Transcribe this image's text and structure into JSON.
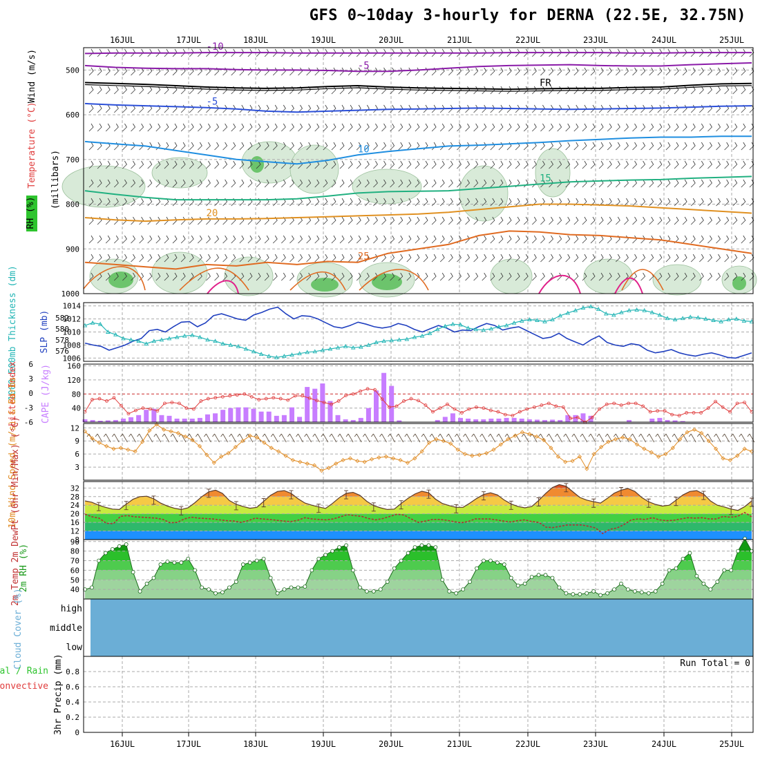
{
  "title": "GFS 0~10day 3-hourly for DERNA (22.5E, 32.75N)",
  "days": [
    "16JUL",
    "17JUL",
    "18JUL",
    "19JUL",
    "20JUL",
    "21JUL",
    "22JUL",
    "23JUL",
    "24JUL",
    "25JUL"
  ],
  "colors": {
    "grid": "#aaaaaa",
    "cloud": "#6baed6",
    "cape": "#c77dff",
    "lifted": "#e03c3c",
    "slp": "#1f3fbf",
    "thick": "#22b5b5",
    "wind10": "#e08a20",
    "dew": "#b03030"
  },
  "chart_data": [
    {
      "type": "heatmap",
      "panel": "upper-air",
      "ylabel_wind": "Wind (m/s)",
      "ylabel_temp": "Temperature (°C)",
      "ylabel_rh": "RH (%)",
      "ylabel_units": "(millibars)",
      "y_ticks": [
        "500",
        "600",
        "700",
        "800",
        "900",
        "1000"
      ],
      "ylim": [
        1000,
        450
      ],
      "temperature_contours": [
        {
          "label": "-10",
          "color": "#8a1aa8",
          "p": [
            463,
            462,
            462,
            462,
            461,
            461,
            461,
            462,
            462,
            462,
            462,
            462,
            462,
            462,
            461,
            461,
            461,
            461,
            462,
            462,
            461,
            461,
            461
          ]
        },
        {
          "label": "-5",
          "color": "#8a1aa8",
          "p": [
            490,
            494,
            496,
            497,
            497,
            499,
            500,
            500,
            501,
            503,
            503,
            500,
            496,
            492,
            490,
            489,
            488,
            490,
            491,
            491,
            488,
            486,
            484
          ]
        },
        {
          "label": "FR",
          "color": "#000000",
          "p": [
            528,
            530,
            532,
            535,
            538,
            540,
            541,
            540,
            537,
            535,
            538,
            540,
            541,
            542,
            543,
            542,
            541,
            541,
            539,
            538,
            534,
            531,
            530
          ]
        },
        {
          "label": "-5",
          "color": "#2b4fd8",
          "p": [
            575,
            578,
            580,
            582,
            584,
            587,
            592,
            594,
            592,
            590,
            588,
            587,
            586,
            585,
            586,
            587,
            588,
            587,
            586,
            585,
            583,
            581,
            580
          ]
        },
        {
          "label": "10",
          "color": "#1f8ee0",
          "p": [
            660,
            665,
            670,
            680,
            690,
            700,
            705,
            710,
            702,
            690,
            682,
            676,
            670,
            668,
            665,
            662,
            658,
            655,
            652,
            650,
            650,
            648,
            648
          ]
        },
        {
          "label": "15",
          "color": "#20b080",
          "p": [
            770,
            778,
            785,
            790,
            790,
            790,
            790,
            788,
            782,
            775,
            772,
            771,
            770,
            765,
            760,
            755,
            750,
            748,
            746,
            745,
            742,
            740,
            738
          ]
        },
        {
          "label": "20",
          "color": "#e09020",
          "p": [
            830,
            835,
            838,
            835,
            833,
            833,
            832,
            830,
            828,
            826,
            824,
            822,
            818,
            812,
            806,
            800,
            800,
            802,
            804,
            808,
            812,
            816,
            820
          ]
        },
        {
          "label": "25",
          "color": "#e06a20",
          "p": [
            930,
            935,
            940,
            945,
            935,
            938,
            930,
            935,
            928,
            930,
            910,
            900,
            890,
            870,
            860,
            862,
            868,
            870,
            875,
            880,
            890,
            900,
            910
          ]
        }
      ],
      "rh_shading_levels": [
        "10",
        "30",
        "70",
        "90"
      ]
    },
    {
      "type": "line",
      "panel": "pressure",
      "ylabel_left": "1000-500mb Thickness (dm)",
      "ylabel_right": "SLP (mb)",
      "left_ticks": [
        576,
        578,
        580,
        582
      ],
      "right_ticks": [
        1006,
        1008,
        1010,
        1012,
        1014
      ],
      "ylim_slp": [
        1005.5,
        1014.5
      ],
      "series": [
        {
          "name": "SLP (mb)",
          "values": [
            1008.3,
            1008.0,
            1007.8,
            1007.2,
            1007.6,
            1008.0,
            1008.6,
            1009.0,
            1010.2,
            1010.4,
            1010.0,
            1010.8,
            1011.5,
            1011.6,
            1010.8,
            1011.4,
            1012.5,
            1012.8,
            1012.4,
            1012.0,
            1011.8,
            1012.6,
            1013.0,
            1013.5,
            1013.8,
            1012.8,
            1012.0,
            1012.5,
            1012.4,
            1012.0,
            1011.4,
            1010.8,
            1010.6,
            1011.0,
            1011.5,
            1011.2,
            1010.8,
            1010.6,
            1010.8,
            1011.3,
            1011.0,
            1010.4,
            1010.0,
            1010.5,
            1011.0,
            1010.6,
            1010.0,
            1010.3,
            1010.2,
            1010.8,
            1011.3,
            1011.0,
            1010.3,
            1010.6,
            1010.8,
            1010.2,
            1009.6,
            1009.0,
            1009.2,
            1009.8,
            1009.0,
            1008.5,
            1008.0,
            1008.8,
            1009.4,
            1008.4,
            1008.0,
            1007.8,
            1008.2,
            1008.0,
            1007.2,
            1006.8,
            1007.0,
            1007.3,
            1006.8,
            1006.5,
            1006.3,
            1006.6,
            1006.8,
            1006.5,
            1006.1,
            1006.0,
            1006.4,
            1006.8
          ]
        },
        {
          "name": "1000-500mb Thickness (dm)",
          "values": [
            1011.0,
            1011.4,
            1011.2,
            1010.0,
            1009.6,
            1009.0,
            1008.8,
            1008.6,
            1008.2,
            1008.6,
            1008.8,
            1009.0,
            1009.2,
            1009.4,
            1009.5,
            1009.2,
            1008.8,
            1008.6,
            1008.2,
            1008.0,
            1007.8,
            1007.4,
            1007.0,
            1006.6,
            1006.3,
            1006.1,
            1006.3,
            1006.5,
            1006.7,
            1006.9,
            1007.0,
            1007.2,
            1007.4,
            1007.6,
            1007.8,
            1007.6,
            1007.7,
            1008.0,
            1008.4,
            1008.6,
            1008.7,
            1008.8,
            1008.9,
            1009.2,
            1009.4,
            1009.8,
            1010.4,
            1010.9,
            1011.2,
            1011.1,
            1010.6,
            1010.4,
            1010.3,
            1010.5,
            1010.8,
            1011.0,
            1011.4,
            1011.7,
            1011.9,
            1011.8,
            1011.6,
            1011.9,
            1012.5,
            1012.9,
            1013.3,
            1013.7,
            1013.9,
            1013.5,
            1012.8,
            1012.6,
            1013.0,
            1013.3,
            1013.4,
            1013.3,
            1013.0,
            1012.6,
            1012.1,
            1011.9,
            1012.1,
            1012.3,
            1012.2,
            1012.0,
            1011.8,
            1011.6,
            1011.9,
            1012.0,
            1011.7,
            1011.6
          ]
        }
      ]
    },
    {
      "type": "bar",
      "panel": "stability",
      "ylabel_left": "Lifted Index",
      "ylabel_right": "CAPE (J/kg)",
      "left_ticks": [
        "-6",
        "-3",
        "0",
        "3",
        "6"
      ],
      "right_ticks": [
        "40",
        "80",
        "120",
        "160"
      ],
      "ylim_cape": [
        0,
        165
      ],
      "cape_values": [
        8,
        6,
        4,
        5,
        6,
        10,
        14,
        20,
        35,
        38,
        20,
        18,
        10,
        10,
        10,
        12,
        22,
        25,
        35,
        40,
        42,
        42,
        38,
        30,
        30,
        18,
        20,
        42,
        15,
        100,
        95,
        110,
        60,
        20,
        8,
        6,
        12,
        40,
        90,
        140,
        103,
        5,
        0,
        0,
        0,
        0,
        6,
        15,
        25,
        12,
        10,
        8,
        8,
        10,
        10,
        12,
        12,
        10,
        8,
        7,
        6,
        7,
        6,
        20,
        20,
        25,
        18,
        0,
        0,
        0,
        0,
        6,
        0,
        0,
        10,
        12,
        6,
        5,
        3,
        0,
        0,
        0,
        0,
        0,
        0,
        0,
        0,
        0
      ],
      "lifted_index": [
        3.8,
        1.2,
        1.0,
        1.5,
        0.8,
        2.5,
        4.2,
        3.5,
        3.0,
        3.2,
        3.6,
        2.0,
        1.8,
        2.0,
        3.0,
        3.2,
        1.5,
        1.0,
        0.8,
        0.6,
        0.4,
        0.2,
        0.0,
        0.6,
        1.2,
        1.0,
        0.8,
        1.0,
        1.3,
        0.4,
        0.4,
        0.9,
        1.4,
        1.8,
        2.2,
        1.5,
        0.3,
        0.0,
        -0.6,
        -1.1,
        -0.9,
        1.1,
        2.8,
        2.6,
        1.5,
        1.0,
        1.4,
        2.4,
        3.8,
        3.0,
        2.2,
        3.2,
        4.0,
        3.2,
        2.8,
        3.0,
        3.5,
        3.8,
        4.4,
        4.6,
        3.8,
        3.2,
        2.8,
        2.4,
        2.0,
        2.6,
        2.8,
        5.2,
        5.0,
        6.0,
        5.0,
        3.2,
        2.2,
        2.0,
        2.4,
        2.0,
        2.0,
        2.6,
        3.8,
        3.6,
        3.6,
        4.4,
        4.6,
        4.0,
        4.0,
        4.0,
        3.0,
        1.6,
        2.8,
        3.8,
        2.0,
        1.8,
        3.8
      ]
    },
    {
      "type": "line",
      "panel": "wind10m",
      "ylabel": "10m Wind Speed (m/s) & Barbs",
      "y_ticks": [
        3,
        6,
        9,
        12
      ],
      "ylim": [
        0,
        13
      ],
      "series": [
        {
          "name": "10m Wind",
          "values": [
            11.2,
            9.6,
            8.6,
            7.8,
            7.2,
            7.4,
            7.0,
            6.6,
            8.8,
            11.4,
            12.8,
            11.6,
            11.2,
            10.8,
            10.0,
            9.2,
            7.8,
            5.8,
            4.0,
            5.4,
            6.2,
            7.6,
            9.0,
            10.2,
            9.8,
            8.6,
            7.4,
            6.6,
            5.6,
            4.6,
            4.2,
            3.8,
            3.4,
            2.2,
            2.8,
            3.8,
            4.6,
            5.0,
            4.4,
            4.2,
            4.8,
            5.2,
            5.4,
            5.0,
            4.6,
            4.0,
            5.0,
            6.6,
            8.6,
            9.4,
            9.0,
            8.4,
            7.0,
            6.0,
            5.6,
            5.8,
            6.2,
            7.0,
            8.2,
            9.4,
            10.2,
            11.0,
            10.6,
            10.0,
            9.2,
            7.4,
            5.4,
            4.2,
            4.4,
            5.4,
            2.6,
            6.0,
            7.6,
            8.8,
            9.4,
            9.8,
            9.4,
            8.2,
            7.2,
            6.4,
            5.4,
            6.0,
            7.4,
            9.4,
            11.0,
            11.6,
            10.8,
            9.0,
            7.2,
            5.0,
            4.6,
            5.6,
            7.2,
            6.6
          ]
        }
      ]
    },
    {
      "type": "area",
      "panel": "temp2m",
      "ylabel": "2m Temp 2m DewPt (6hr Min/Max) (°C)",
      "y_ticks": [
        8,
        12,
        16,
        20,
        24,
        28,
        32
      ],
      "ylim": [
        8,
        35
      ],
      "series": [
        {
          "name": "2m Temp",
          "values": [
            26.0,
            25.4,
            24.0,
            23.0,
            22.2,
            22.0,
            24.5,
            26.8,
            28.0,
            28.2,
            27.0,
            25.0,
            23.6,
            22.6,
            22.0,
            22.8,
            25.2,
            28.0,
            30.2,
            31.0,
            29.5,
            26.2,
            24.4,
            23.4,
            22.6,
            23.0,
            25.8,
            28.6,
            30.4,
            30.8,
            29.5,
            27.0,
            25.0,
            24.0,
            23.2,
            22.5,
            24.8,
            27.5,
            29.5,
            30.0,
            28.6,
            25.8,
            23.8,
            22.8,
            22.0,
            22.2,
            24.8,
            27.2,
            29.2,
            30.5,
            29.8,
            26.8,
            24.8,
            23.8,
            23.0,
            23.0,
            25.0,
            27.2,
            29.0,
            29.8,
            28.8,
            26.4,
            24.6,
            23.4,
            22.8,
            23.4,
            26.2,
            29.4,
            32.2,
            33.6,
            32.8,
            30.2,
            27.6,
            26.4,
            25.6,
            25.0,
            27.2,
            29.6,
            31.0,
            31.8,
            30.4,
            27.6,
            25.6,
            24.4,
            23.6,
            24.0,
            26.4,
            28.8,
            30.4,
            30.8,
            29.2,
            26.0,
            24.0,
            23.2,
            22.2,
            21.6,
            23.4,
            26.0
          ]
        },
        {
          "name": "2m DewPt",
          "values": [
            19.8,
            18.6,
            18.0,
            15.6,
            15.4,
            18.8,
            19.2,
            18.6,
            18.4,
            18.2,
            18.0,
            17.4,
            15.8,
            16.0,
            17.6,
            18.4,
            18.0,
            17.8,
            17.6,
            17.2,
            16.8,
            16.6,
            16.0,
            16.8,
            18.0,
            17.6,
            17.4,
            17.0,
            16.6,
            16.4,
            17.0,
            18.2,
            17.6,
            17.4,
            17.2,
            17.6,
            18.6,
            19.6,
            19.2,
            18.8,
            17.8,
            17.2,
            17.8,
            18.8,
            19.8,
            19.4,
            17.6,
            16.0,
            16.6,
            17.4,
            17.4,
            17.0,
            16.4,
            15.8,
            16.4,
            17.6,
            17.6,
            17.6,
            17.2,
            16.6,
            16.2,
            16.8,
            17.2,
            16.4,
            16.0,
            13.8,
            13.6,
            14.2,
            14.8,
            14.8,
            14.8,
            14.2,
            13.4,
            10.8,
            12.8,
            13.4,
            15.0,
            17.2,
            17.6,
            17.4,
            18.2,
            17.2,
            16.8,
            17.0,
            17.6,
            18.2,
            18.0,
            18.2,
            17.6,
            17.6,
            18.8,
            18.4,
            18.8,
            20.6,
            18.6
          ]
        }
      ]
    },
    {
      "type": "area",
      "panel": "rh2m",
      "ylabel": "2m RH (%)",
      "y_ticks": [
        40,
        50,
        60,
        70,
        80,
        90
      ],
      "ylim": [
        30,
        92
      ],
      "series": [
        {
          "name": "2m RH",
          "values": [
            40,
            42,
            70,
            78,
            82,
            85,
            87,
            58,
            38,
            46,
            52,
            66,
            69,
            68,
            68,
            72,
            60,
            42,
            40,
            36,
            37,
            42,
            48,
            66,
            68,
            70,
            72,
            52,
            36,
            40,
            42,
            42,
            43,
            60,
            72,
            76,
            80,
            84,
            86,
            60,
            42,
            38,
            38,
            40,
            48,
            62,
            70,
            78,
            84,
            86,
            86,
            84,
            50,
            38,
            36,
            40,
            48,
            62,
            70,
            70,
            68,
            66,
            52,
            44,
            46,
            53,
            55,
            55,
            52,
            42,
            36,
            35,
            35,
            36,
            38,
            34,
            36,
            40,
            46,
            40,
            38,
            37,
            36,
            38,
            46,
            60,
            62,
            72,
            78,
            54,
            46,
            40,
            48,
            60,
            60,
            80,
            93,
            80
          ]
        }
      ]
    },
    {
      "type": "heatmap",
      "panel": "cloud",
      "ylabel": "Cloud Cover (%)",
      "levels": [
        "high",
        "middle",
        "low"
      ]
    },
    {
      "type": "bar",
      "panel": "precip",
      "ylabel": "3hr Precip (mm)",
      "series_labels": [
        "Total / Rain",
        "Convective"
      ],
      "y_ticks": [
        "0",
        "0.2",
        "0.4",
        "0.6",
        "0.8"
      ],
      "ylim": [
        0,
        1
      ],
      "run_total": "Run Total = 0",
      "values": []
    }
  ]
}
